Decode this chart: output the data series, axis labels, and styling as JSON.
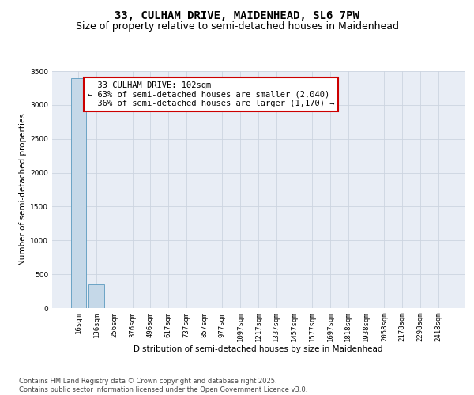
{
  "title_line1": "33, CULHAM DRIVE, MAIDENHEAD, SL6 7PW",
  "title_line2": "Size of property relative to semi-detached houses in Maidenhead",
  "xlabel": "Distribution of semi-detached houses by size in Maidenhead",
  "ylabel": "Number of semi-detached properties",
  "categories": [
    "16sqm",
    "136sqm",
    "256sqm",
    "376sqm",
    "496sqm",
    "617sqm",
    "737sqm",
    "857sqm",
    "977sqm",
    "1097sqm",
    "1217sqm",
    "1337sqm",
    "1457sqm",
    "1577sqm",
    "1697sqm",
    "1818sqm",
    "1938sqm",
    "2058sqm",
    "2178sqm",
    "2298sqm",
    "2418sqm"
  ],
  "values": [
    3390,
    350,
    0,
    0,
    0,
    0,
    0,
    0,
    0,
    0,
    0,
    0,
    0,
    0,
    0,
    0,
    0,
    0,
    0,
    0,
    0
  ],
  "bar_color": "#c5d8e8",
  "bar_edge_color": "#5a9abf",
  "ylim": [
    0,
    3500
  ],
  "yticks": [
    0,
    500,
    1000,
    1500,
    2000,
    2500,
    3000,
    3500
  ],
  "annotation_text": "  33 CULHAM DRIVE: 102sqm\n← 63% of semi-detached houses are smaller (2,040)\n  36% of semi-detached houses are larger (1,170) →",
  "annotation_box_color": "#ffffff",
  "annotation_box_edge": "#cc0000",
  "grid_color": "#ccd4e0",
  "bg_color": "#e8edf5",
  "footer_text": "Contains HM Land Registry data © Crown copyright and database right 2025.\nContains public sector information licensed under the Open Government Licence v3.0.",
  "title_fontsize": 10,
  "subtitle_fontsize": 9,
  "axis_label_fontsize": 7.5,
  "tick_fontsize": 6.5,
  "annotation_fontsize": 7.5,
  "footer_fontsize": 6
}
